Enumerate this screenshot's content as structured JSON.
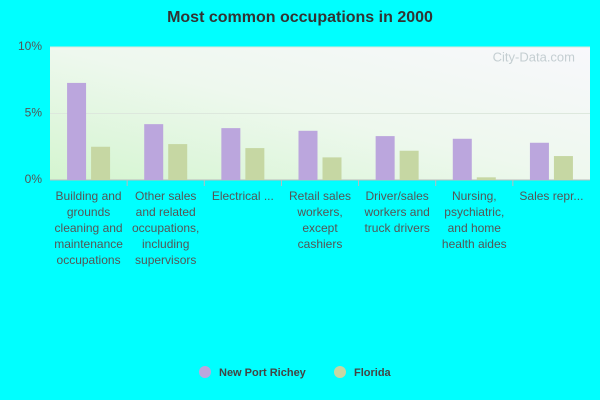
{
  "chart_data": {
    "type": "bar",
    "title": "Most common occupations in 2000",
    "watermark": "City-Data.com",
    "categories": [
      "Building and grounds cleaning and maintenance occupations",
      "Other sales and related occupations, including supervisors",
      "Electrical ...",
      "Retail sales workers, except cashiers",
      "Driver/sales workers and truck drivers",
      "Nursing, psychiatric, and home health aides",
      "Sales repr..."
    ],
    "series": [
      {
        "name": "New Port Richey",
        "color": "#bba6dd",
        "values": [
          7.3,
          4.2,
          3.9,
          3.7,
          3.3,
          3.1,
          2.8
        ]
      },
      {
        "name": "Florida",
        "color": "#c6d7a3",
        "values": [
          2.5,
          2.7,
          2.4,
          1.7,
          2.2,
          0.2,
          1.8
        ]
      }
    ],
    "ylim": [
      0,
      10
    ],
    "yticks": [
      {
        "value": 0,
        "label": "0%"
      },
      {
        "value": 5,
        "label": "5%"
      },
      {
        "value": 10,
        "label": "10%"
      }
    ],
    "grid": true
  }
}
